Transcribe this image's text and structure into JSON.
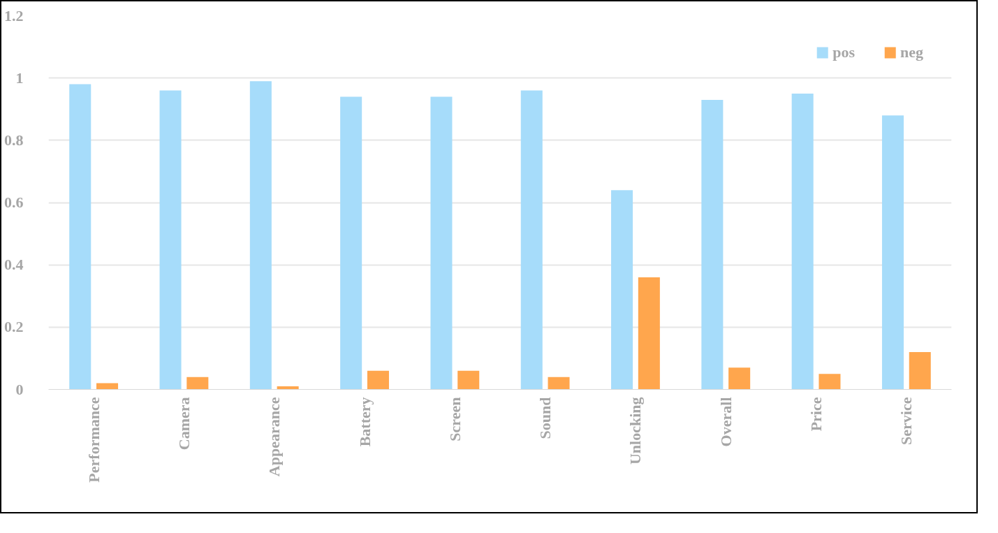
{
  "chart_data": {
    "type": "bar",
    "categories": [
      "Performance",
      "Camera",
      "Appearance",
      "Battery",
      "Screen",
      "Sound",
      "Unlocking",
      "Overall",
      "Price",
      "Service"
    ],
    "series": [
      {
        "name": "pos",
        "color": "#a6dcfa",
        "values": [
          0.98,
          0.96,
          0.99,
          0.94,
          0.94,
          0.96,
          0.64,
          0.93,
          0.95,
          0.88
        ]
      },
      {
        "name": "neg",
        "color": "#ffa64d",
        "values": [
          0.02,
          0.04,
          0.01,
          0.06,
          0.06,
          0.04,
          0.36,
          0.07,
          0.05,
          0.12
        ]
      }
    ],
    "ylim": [
      0,
      1.2
    ],
    "yticks": [
      0,
      0.2,
      0.4,
      0.6,
      0.8,
      1,
      1.2
    ],
    "grid": "y",
    "legend": "top right"
  }
}
